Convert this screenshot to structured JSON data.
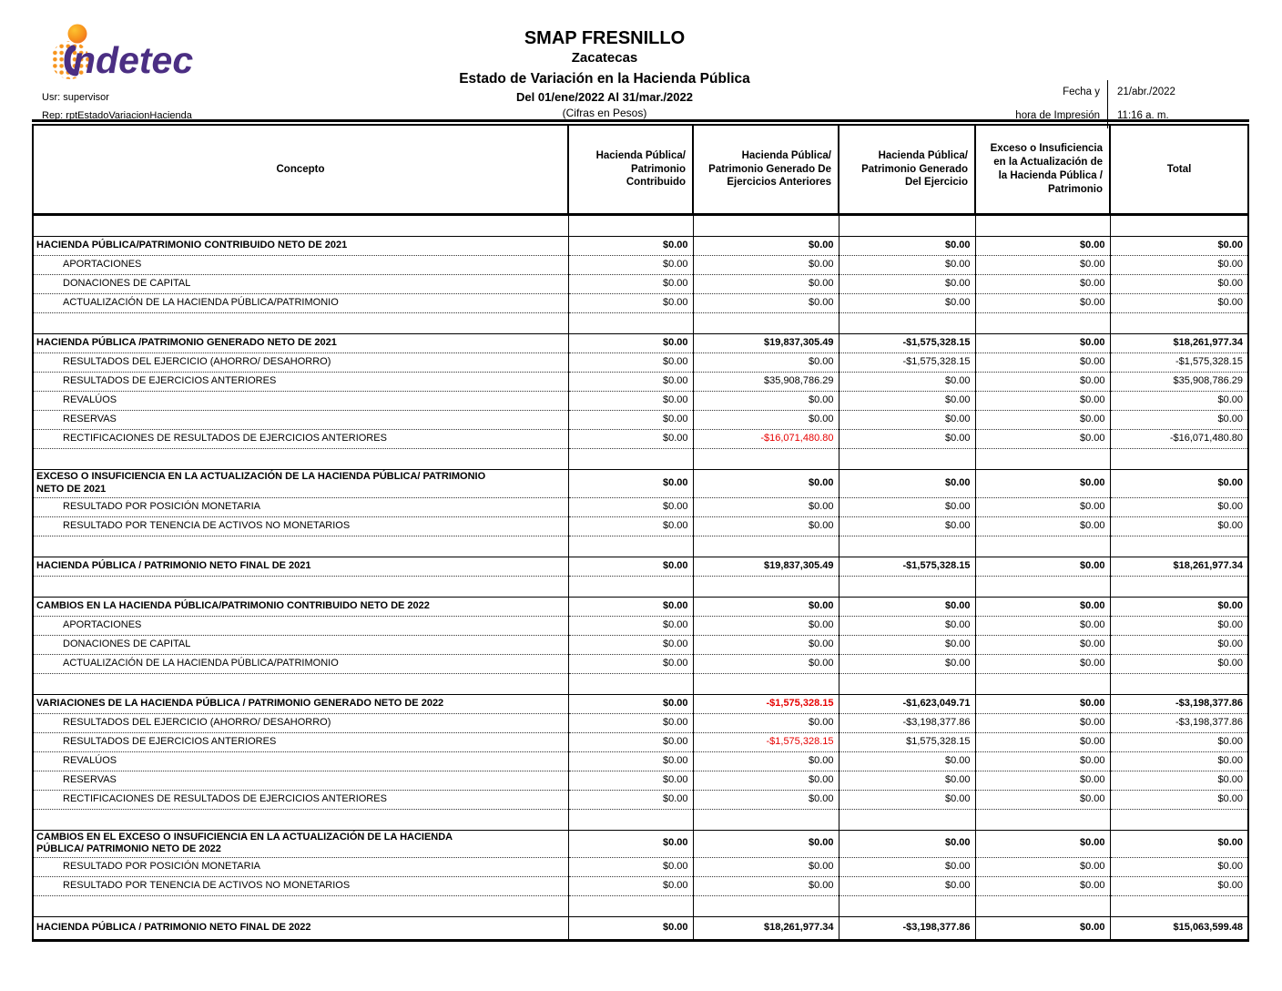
{
  "colors": {
    "negative_red": "#e60000",
    "logo_purple": "#4b2e83",
    "logo_orange": "#f7941d"
  },
  "header": {
    "logo_name": "indetec",
    "user_label": "Usr: supervisor",
    "report_id_label": "Rep: rptEstadoVariacionHacienda",
    "org": "SMAP FRESNILLO",
    "state": "Zacatecas",
    "report_title": "Estado de Variación en la Hacienda Pública",
    "period": "Del 01/ene/2022 Al 31/mar./2022",
    "units": "(Cifras en Pesos)",
    "print_label_line1": "Fecha y",
    "print_label_line2": "hora de Impresión",
    "print_date": "21/abr./2022",
    "print_time": "11:16 a. m."
  },
  "table": {
    "columns": [
      "Concepto",
      "Hacienda Pública/ Patrimonio Contribuido",
      "Hacienda Pública/ Patrimonio Generado De Ejercicios Anteriores",
      "Hacienda Pública/ Patrimonio Generado Del Ejercicio",
      "Exceso o Insuficiencia en la Actualización de la Hacienda Pública / Patrimonio",
      "Total"
    ],
    "rows": [
      {
        "kind": "spacer"
      },
      {
        "kind": "section",
        "label": "HACIENDA PÚBLICA/PATRIMONIO CONTRIBUIDO NETO DE 2021",
        "values": [
          "$0.00",
          "$0.00",
          "$0.00",
          "$0.00",
          "$0.00"
        ]
      },
      {
        "kind": "item",
        "label": "APORTACIONES",
        "values": [
          "$0.00",
          "$0.00",
          "$0.00",
          "$0.00",
          "$0.00"
        ]
      },
      {
        "kind": "item",
        "label": "DONACIONES DE CAPITAL",
        "values": [
          "$0.00",
          "$0.00",
          "$0.00",
          "$0.00",
          "$0.00"
        ]
      },
      {
        "kind": "item",
        "label": "ACTUALIZACIÓN DE LA HACIENDA PÚBLICA/PATRIMONIO",
        "values": [
          "$0.00",
          "$0.00",
          "$0.00",
          "$0.00",
          "$0.00"
        ]
      },
      {
        "kind": "spacer"
      },
      {
        "kind": "section",
        "label": "HACIENDA PÚBLICA /PATRIMONIO GENERADO NETO DE 2021",
        "values": [
          "$0.00",
          "$19,837,305.49",
          "-$1,575,328.15",
          "$0.00",
          "$18,261,977.34"
        ]
      },
      {
        "kind": "item",
        "label": "RESULTADOS DEL EJERCICIO (AHORRO/ DESAHORRO)",
        "values": [
          "$0.00",
          "$0.00",
          "-$1,575,328.15",
          "$0.00",
          "-$1,575,328.15"
        ]
      },
      {
        "kind": "item",
        "label": "RESULTADOS DE EJERCICIOS ANTERIORES",
        "values": [
          "$0.00",
          "$35,908,786.29",
          "$0.00",
          "$0.00",
          "$35,908,786.29"
        ]
      },
      {
        "kind": "item",
        "label": "REVALÚOS",
        "values": [
          "$0.00",
          "$0.00",
          "$0.00",
          "$0.00",
          "$0.00"
        ]
      },
      {
        "kind": "item",
        "label": "RESERVAS",
        "values": [
          "$0.00",
          "$0.00",
          "$0.00",
          "$0.00",
          "$0.00"
        ]
      },
      {
        "kind": "item",
        "label": "RECTIFICACIONES DE RESULTADOS DE EJERCICIOS ANTERIORES",
        "values": [
          "$0.00",
          "-$16,071,480.80",
          "$0.00",
          "$0.00",
          "-$16,071,480.80"
        ],
        "red": [
          1
        ]
      },
      {
        "kind": "spacer"
      },
      {
        "kind": "section",
        "label": "EXCESO O INSUFICIENCIA EN LA ACTUALIZACIÓN DE LA HACIENDA PÚBLICA/ PATRIMONIO\nNETO DE 2021",
        "values": [
          "$0.00",
          "$0.00",
          "$0.00",
          "$0.00",
          "$0.00"
        ]
      },
      {
        "kind": "item",
        "label": "RESULTADO POR POSICIÓN MONETARIA",
        "values": [
          "$0.00",
          "$0.00",
          "$0.00",
          "$0.00",
          "$0.00"
        ]
      },
      {
        "kind": "item",
        "label": "RESULTADO POR TENENCIA DE ACTIVOS NO MONETARIOS",
        "values": [
          "$0.00",
          "$0.00",
          "$0.00",
          "$0.00",
          "$0.00"
        ]
      },
      {
        "kind": "spacer"
      },
      {
        "kind": "section",
        "label": "HACIENDA PÚBLICA / PATRIMONIO  NETO  FINAL DE 2021",
        "values": [
          "$0.00",
          "$19,837,305.49",
          "-$1,575,328.15",
          "$0.00",
          "$18,261,977.34"
        ]
      },
      {
        "kind": "spacer"
      },
      {
        "kind": "section",
        "label": "CAMBIOS EN LA HACIENDA PÚBLICA/PATRIMONIO CONTRIBUIDO NETO DE 2022",
        "values": [
          "$0.00",
          "$0.00",
          "$0.00",
          "$0.00",
          "$0.00"
        ]
      },
      {
        "kind": "item",
        "label": "APORTACIONES",
        "values": [
          "$0.00",
          "$0.00",
          "$0.00",
          "$0.00",
          "$0.00"
        ]
      },
      {
        "kind": "item",
        "label": "DONACIONES DE CAPITAL",
        "values": [
          "$0.00",
          "$0.00",
          "$0.00",
          "$0.00",
          "$0.00"
        ]
      },
      {
        "kind": "item",
        "label": "ACTUALIZACIÓN DE LA HACIENDA PÚBLICA/PATRIMONIO",
        "values": [
          "$0.00",
          "$0.00",
          "$0.00",
          "$0.00",
          "$0.00"
        ]
      },
      {
        "kind": "spacer"
      },
      {
        "kind": "section",
        "label": "VARIACIONES DE LA HACIENDA PÚBLICA / PATRIMONIO GENERADO NETO DE 2022",
        "values": [
          "$0.00",
          "-$1,575,328.15",
          "-$1,623,049.71",
          "$0.00",
          "-$3,198,377.86"
        ],
        "red": [
          1
        ]
      },
      {
        "kind": "item",
        "label": "RESULTADOS DEL EJERCICIO (AHORRO/ DESAHORRO)",
        "values": [
          "$0.00",
          "$0.00",
          "-$3,198,377.86",
          "$0.00",
          "-$3,198,377.86"
        ]
      },
      {
        "kind": "item",
        "label": "RESULTADOS DE EJERCICIOS ANTERIORES",
        "values": [
          "$0.00",
          "-$1,575,328.15",
          "$1,575,328.15",
          "$0.00",
          "$0.00"
        ],
        "red": [
          1
        ]
      },
      {
        "kind": "item",
        "label": "REVALÚOS",
        "values": [
          "$0.00",
          "$0.00",
          "$0.00",
          "$0.00",
          "$0.00"
        ]
      },
      {
        "kind": "item",
        "label": "RESERVAS",
        "values": [
          "$0.00",
          "$0.00",
          "$0.00",
          "$0.00",
          "$0.00"
        ]
      },
      {
        "kind": "item",
        "label": "RECTIFICACIONES DE RESULTADOS DE EJERCICIOS ANTERIORES",
        "values": [
          "$0.00",
          "$0.00",
          "$0.00",
          "$0.00",
          "$0.00"
        ]
      },
      {
        "kind": "spacer"
      },
      {
        "kind": "section",
        "label": "CAMBIOS EN EL EXCESO O INSUFICIENCIA EN LA ACTUALIZACIÓN DE LA HACIENDA\nPÚBLICA/ PATRIMONIO NETO DE 2022",
        "values": [
          "$0.00",
          "$0.00",
          "$0.00",
          "$0.00",
          "$0.00"
        ]
      },
      {
        "kind": "item",
        "label": "RESULTADO POR POSICIÓN MONETARIA",
        "values": [
          "$0.00",
          "$0.00",
          "$0.00",
          "$0.00",
          "$0.00"
        ]
      },
      {
        "kind": "item",
        "label": "RESULTADO POR TENENCIA DE ACTIVOS NO MONETARIOS",
        "values": [
          "$0.00",
          "$0.00",
          "$0.00",
          "$0.00",
          "$0.00"
        ]
      },
      {
        "kind": "spacer"
      },
      {
        "kind": "section",
        "label": "HACIENDA PÚBLICA / PATRIMONIO NETO FINAL DE 2022",
        "values": [
          "$0.00",
          "$18,261,977.34",
          "-$3,198,377.86",
          "$0.00",
          "$15,063,599.48"
        ]
      }
    ]
  }
}
